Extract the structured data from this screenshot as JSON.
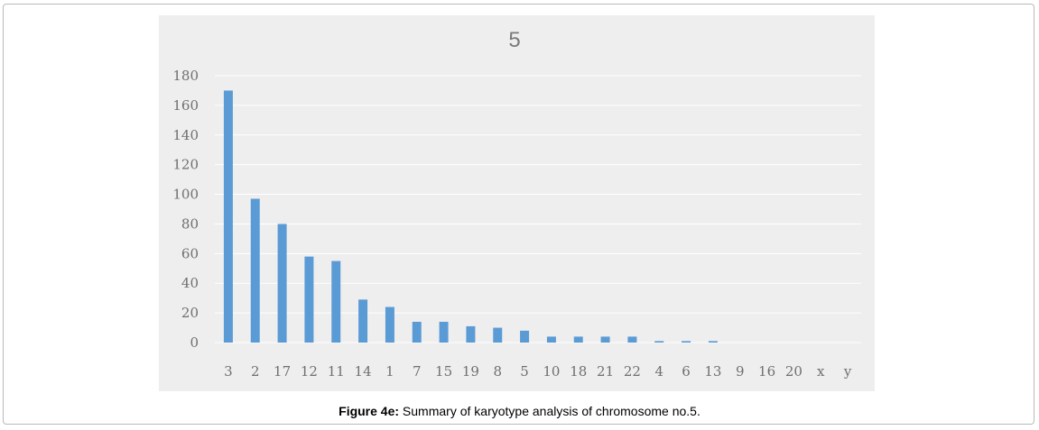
{
  "chart_data": {
    "type": "bar",
    "title": "5",
    "categories": [
      "3",
      "2",
      "17",
      "12",
      "11",
      "14",
      "1",
      "7",
      "15",
      "19",
      "8",
      "5",
      "10",
      "18",
      "21",
      "22",
      "4",
      "6",
      "13",
      "9",
      "16",
      "20",
      "x",
      "y"
    ],
    "values": [
      170,
      97,
      80,
      58,
      55,
      29,
      24,
      14,
      14,
      11,
      10,
      8,
      4,
      4,
      4,
      4,
      1,
      1,
      1,
      0,
      0,
      0,
      0,
      0
    ],
    "ylim": [
      0,
      180
    ],
    "yticks": [
      0,
      20,
      40,
      60,
      80,
      100,
      120,
      140,
      160,
      180
    ],
    "grid": true,
    "bar_color": "#5b9bd5",
    "background_color": "#eeeeee",
    "grid_color": "#ffffff"
  },
  "caption": {
    "label": "Figure 4e:",
    "text": " Summary of karyotype analysis of chromosome no.5."
  }
}
